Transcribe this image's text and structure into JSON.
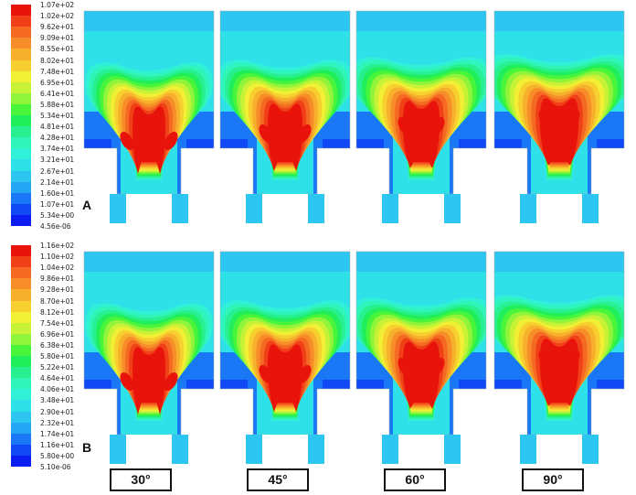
{
  "colors": [
    "#0b1df0",
    "#1048f5",
    "#1a78f7",
    "#24a6f5",
    "#2cc6f0",
    "#2ee0e8",
    "#30f0d8",
    "#30f5b8",
    "#28f090",
    "#20ee5a",
    "#48f53a",
    "#90f53a",
    "#c8f236",
    "#f2f034",
    "#f7d030",
    "#f7b02c",
    "#f78d28",
    "#f56a22",
    "#f04018",
    "#e8140c"
  ],
  "panel_a": {
    "label": "A",
    "scale": [
      "1.07e+02",
      "1.02e+02",
      "9.62e+01",
      "9.09e+01",
      "8.55e+01",
      "8.02e+01",
      "7.48e+01",
      "6.95e+01",
      "6.41e+01",
      "5.88e+01",
      "5.34e+01",
      "4.81e+01",
      "4.28e+01",
      "3.74e+01",
      "3.21e+01",
      "2.67e+01",
      "2.14e+01",
      "1.60e+01",
      "1.07e+01",
      "5.34e+00",
      "4.56e-06"
    ]
  },
  "panel_b": {
    "label": "B",
    "scale": [
      "1.16e+02",
      "1.10e+02",
      "1.04e+02",
      "9.86e+01",
      "9.28e+01",
      "8.70e+01",
      "8.12e+01",
      "7.54e+01",
      "6.96e+01",
      "6.38e+01",
      "5.80e+01",
      "5.22e+01",
      "4.64e+01",
      "4.06e+01",
      "3.48e+01",
      "2.90e+01",
      "2.32e+01",
      "1.74e+01",
      "1.16e+01",
      "5.80e+00",
      "5.10e-06"
    ]
  },
  "angles": [
    "30°",
    "45°",
    "60°",
    "90°"
  ]
}
